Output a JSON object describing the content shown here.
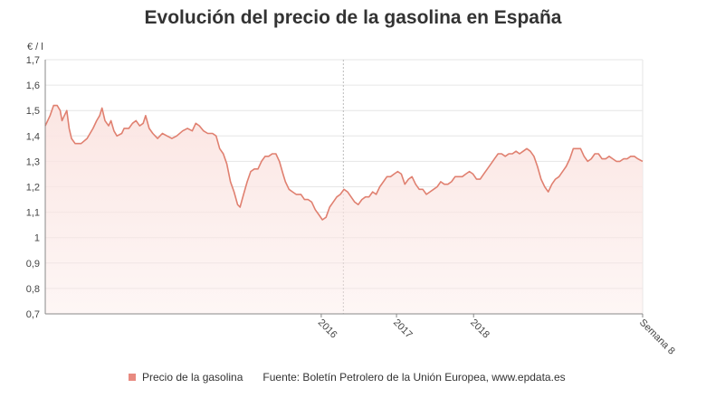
{
  "chart_data": {
    "type": "area",
    "title": "Evolución del precio de la gasolina en España",
    "ylabel": "€ / l",
    "xlabel": "",
    "ylim": [
      0.7,
      1.7
    ],
    "yticks": [
      "0,7",
      "0,8",
      "0,9",
      "1",
      "1,1",
      "1,2",
      "1,3",
      "1,4",
      "1,5",
      "1,6",
      "1,7"
    ],
    "xticks": [
      {
        "label": "2016",
        "x": 0.462
      },
      {
        "label": "2017",
        "x": 0.588
      },
      {
        "label": "2018",
        "x": 0.717
      },
      {
        "label": "Semana 8",
        "x": 1.0
      }
    ],
    "grid": true,
    "colors": {
      "line": "#e08070",
      "fill": "#fbe6e3",
      "swatch": "#e88a80",
      "grid": "#e6e6e6",
      "marker": "#bbbbbb"
    },
    "series": [
      {
        "name": "Precio de la gasolina",
        "points": [
          [
            0.0,
            1.44
          ],
          [
            0.008,
            1.48
          ],
          [
            0.014,
            1.52
          ],
          [
            0.02,
            1.52
          ],
          [
            0.025,
            1.5
          ],
          [
            0.028,
            1.46
          ],
          [
            0.032,
            1.48
          ],
          [
            0.036,
            1.5
          ],
          [
            0.04,
            1.43
          ],
          [
            0.044,
            1.39
          ],
          [
            0.05,
            1.37
          ],
          [
            0.06,
            1.37
          ],
          [
            0.07,
            1.39
          ],
          [
            0.08,
            1.43
          ],
          [
            0.086,
            1.46
          ],
          [
            0.091,
            1.48
          ],
          [
            0.095,
            1.51
          ],
          [
            0.1,
            1.46
          ],
          [
            0.106,
            1.44
          ],
          [
            0.11,
            1.46
          ],
          [
            0.115,
            1.42
          ],
          [
            0.12,
            1.4
          ],
          [
            0.128,
            1.41
          ],
          [
            0.132,
            1.43
          ],
          [
            0.14,
            1.43
          ],
          [
            0.146,
            1.45
          ],
          [
            0.152,
            1.46
          ],
          [
            0.158,
            1.44
          ],
          [
            0.164,
            1.45
          ],
          [
            0.168,
            1.48
          ],
          [
            0.174,
            1.43
          ],
          [
            0.18,
            1.41
          ],
          [
            0.188,
            1.39
          ],
          [
            0.196,
            1.41
          ],
          [
            0.204,
            1.4
          ],
          [
            0.212,
            1.39
          ],
          [
            0.22,
            1.4
          ],
          [
            0.23,
            1.42
          ],
          [
            0.238,
            1.43
          ],
          [
            0.246,
            1.42
          ],
          [
            0.252,
            1.45
          ],
          [
            0.258,
            1.44
          ],
          [
            0.265,
            1.42
          ],
          [
            0.272,
            1.41
          ],
          [
            0.28,
            1.41
          ],
          [
            0.286,
            1.4
          ],
          [
            0.292,
            1.35
          ],
          [
            0.298,
            1.33
          ],
          [
            0.304,
            1.29
          ],
          [
            0.31,
            1.22
          ],
          [
            0.316,
            1.18
          ],
          [
            0.322,
            1.13
          ],
          [
            0.326,
            1.12
          ],
          [
            0.332,
            1.17
          ],
          [
            0.338,
            1.22
          ],
          [
            0.344,
            1.26
          ],
          [
            0.35,
            1.27
          ],
          [
            0.356,
            1.27
          ],
          [
            0.362,
            1.3
          ],
          [
            0.368,
            1.32
          ],
          [
            0.374,
            1.32
          ],
          [
            0.38,
            1.33
          ],
          [
            0.386,
            1.33
          ],
          [
            0.392,
            1.3
          ],
          [
            0.398,
            1.25
          ],
          [
            0.402,
            1.22
          ],
          [
            0.408,
            1.19
          ],
          [
            0.414,
            1.18
          ],
          [
            0.42,
            1.17
          ],
          [
            0.428,
            1.17
          ],
          [
            0.434,
            1.15
          ],
          [
            0.44,
            1.15
          ],
          [
            0.446,
            1.14
          ],
          [
            0.452,
            1.11
          ],
          [
            0.458,
            1.09
          ],
          [
            0.464,
            1.07
          ],
          [
            0.47,
            1.08
          ],
          [
            0.476,
            1.12
          ],
          [
            0.482,
            1.14
          ],
          [
            0.488,
            1.16
          ],
          [
            0.494,
            1.17
          ],
          [
            0.5,
            1.19
          ],
          [
            0.506,
            1.18
          ],
          [
            0.512,
            1.16
          ],
          [
            0.518,
            1.14
          ],
          [
            0.524,
            1.13
          ],
          [
            0.53,
            1.15
          ],
          [
            0.536,
            1.16
          ],
          [
            0.542,
            1.16
          ],
          [
            0.548,
            1.18
          ],
          [
            0.554,
            1.17
          ],
          [
            0.56,
            1.2
          ],
          [
            0.566,
            1.22
          ],
          [
            0.572,
            1.24
          ],
          [
            0.578,
            1.24
          ],
          [
            0.584,
            1.25
          ],
          [
            0.59,
            1.26
          ],
          [
            0.596,
            1.25
          ],
          [
            0.602,
            1.21
          ],
          [
            0.608,
            1.23
          ],
          [
            0.614,
            1.24
          ],
          [
            0.62,
            1.21
          ],
          [
            0.626,
            1.19
          ],
          [
            0.632,
            1.19
          ],
          [
            0.638,
            1.17
          ],
          [
            0.644,
            1.18
          ],
          [
            0.65,
            1.19
          ],
          [
            0.656,
            1.2
          ],
          [
            0.662,
            1.22
          ],
          [
            0.668,
            1.21
          ],
          [
            0.674,
            1.21
          ],
          [
            0.68,
            1.22
          ],
          [
            0.686,
            1.24
          ],
          [
            0.692,
            1.24
          ],
          [
            0.698,
            1.24
          ],
          [
            0.704,
            1.25
          ],
          [
            0.71,
            1.26
          ],
          [
            0.716,
            1.25
          ],
          [
            0.722,
            1.23
          ],
          [
            0.728,
            1.23
          ],
          [
            0.734,
            1.25
          ],
          [
            0.74,
            1.27
          ],
          [
            0.746,
            1.29
          ],
          [
            0.752,
            1.31
          ],
          [
            0.758,
            1.33
          ],
          [
            0.764,
            1.33
          ],
          [
            0.77,
            1.32
          ],
          [
            0.776,
            1.33
          ],
          [
            0.782,
            1.33
          ],
          [
            0.788,
            1.34
          ],
          [
            0.794,
            1.33
          ],
          [
            0.8,
            1.34
          ],
          [
            0.806,
            1.35
          ],
          [
            0.812,
            1.34
          ],
          [
            0.818,
            1.32
          ],
          [
            0.824,
            1.28
          ],
          [
            0.83,
            1.23
          ],
          [
            0.836,
            1.2
          ],
          [
            0.842,
            1.18
          ],
          [
            0.848,
            1.21
          ],
          [
            0.854,
            1.23
          ],
          [
            0.86,
            1.24
          ],
          [
            0.866,
            1.26
          ],
          [
            0.872,
            1.28
          ],
          [
            0.878,
            1.31
          ],
          [
            0.884,
            1.35
          ],
          [
            0.89,
            1.35
          ],
          [
            0.896,
            1.35
          ],
          [
            0.902,
            1.32
          ],
          [
            0.908,
            1.3
          ],
          [
            0.914,
            1.31
          ],
          [
            0.92,
            1.33
          ],
          [
            0.926,
            1.33
          ],
          [
            0.932,
            1.31
          ],
          [
            0.938,
            1.31
          ],
          [
            0.944,
            1.32
          ],
          [
            0.95,
            1.31
          ],
          [
            0.956,
            1.3
          ],
          [
            0.962,
            1.3
          ],
          [
            0.968,
            1.31
          ],
          [
            0.974,
            1.31
          ],
          [
            0.98,
            1.32
          ],
          [
            0.986,
            1.32
          ],
          [
            0.992,
            1.31
          ],
          [
            1.0,
            1.3
          ]
        ]
      }
    ],
    "source": "Fuente: Boletín Petrolero de la Unión Europea, www.epdata.es"
  }
}
